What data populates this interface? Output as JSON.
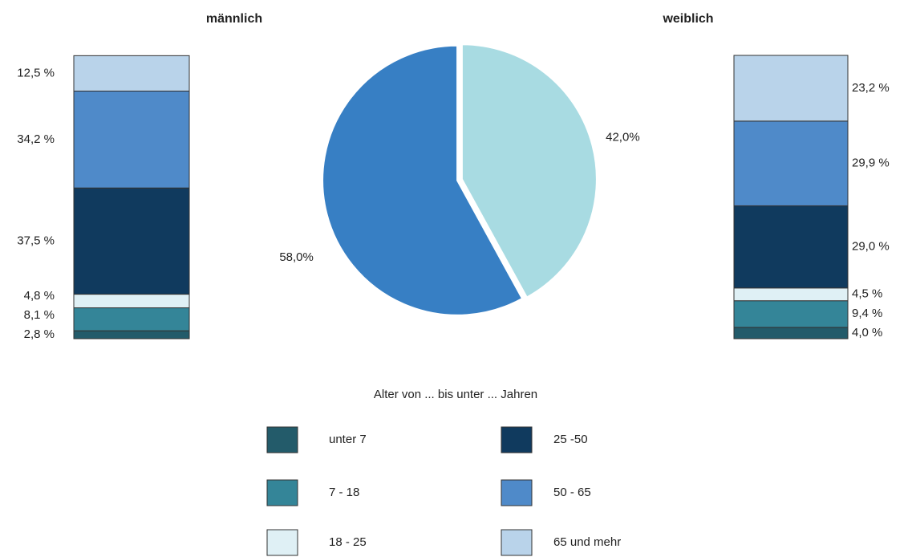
{
  "chart_data": [
    {
      "type": "bar",
      "stacked": true,
      "categories": [
        "männlich",
        "weiblich"
      ],
      "legend_title": "Alter von ... bis unter ... Jahren",
      "series": [
        {
          "name": "unter 7",
          "color": "#235b6a",
          "values": [
            2.8,
            4.0
          ],
          "value_labels": [
            "2,8 %",
            "4,0 %"
          ]
        },
        {
          "name": "7 - 18",
          "color": "#348598",
          "values": [
            8.1,
            9.4
          ],
          "value_labels": [
            "8,1 %",
            "9,4 %"
          ]
        },
        {
          "name": "18 - 25",
          "color": "#dff0f5",
          "values": [
            4.8,
            4.5
          ],
          "value_labels": [
            "4,8 %",
            "4,5 %"
          ]
        },
        {
          "name": "25 -50",
          "color": "#103a5e",
          "values": [
            37.5,
            29.0
          ],
          "value_labels": [
            "37,5 %",
            "29,0 %"
          ]
        },
        {
          "name": "50 - 65",
          "color": "#4f8ac9",
          "values": [
            34.2,
            29.9
          ],
          "value_labels": [
            "34,2 %",
            "29,9 %"
          ]
        },
        {
          "name": "65 und mehr",
          "color": "#b9d3ea",
          "values": [
            12.5,
            23.2
          ],
          "value_labels": [
            "12,5 %",
            "23,2 %"
          ]
        }
      ]
    },
    {
      "type": "pie",
      "values": [
        58.0,
        42.0
      ],
      "value_labels": [
        "58,0%",
        "42,0%"
      ],
      "colors": [
        "#377fc4",
        "#a8dbe2"
      ]
    }
  ]
}
